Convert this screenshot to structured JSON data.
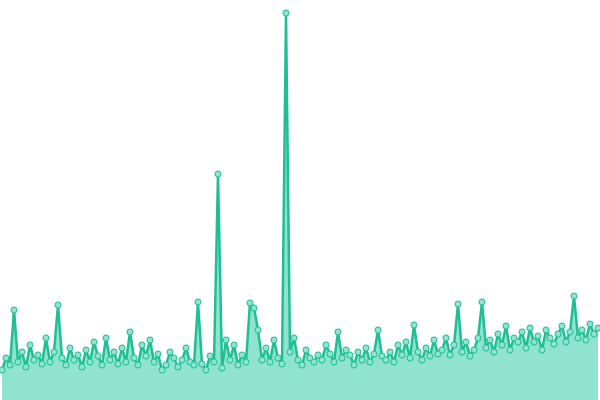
{
  "chart_data": {
    "type": "area",
    "color": "#1fbf95",
    "fill": "#8fe3cf",
    "ylim": [
      0,
      400
    ],
    "categories": [
      null,
      null,
      null,
      null,
      null,
      null,
      null,
      null,
      null,
      null,
      null,
      null,
      null,
      null,
      null,
      null,
      null,
      null,
      null,
      null,
      null,
      null,
      null,
      null,
      null,
      null,
      null,
      null,
      null,
      null,
      null,
      null,
      null,
      null,
      null,
      null,
      null,
      null,
      null,
      null,
      null,
      null,
      null,
      null,
      null,
      null,
      null,
      null,
      null,
      null,
      null,
      null,
      null,
      null,
      null,
      null,
      null,
      null,
      null,
      null,
      null,
      null,
      null,
      null,
      null,
      null,
      null,
      null,
      null,
      null,
      null,
      null,
      null,
      null,
      null,
      null,
      null,
      null,
      null,
      null,
      null,
      null,
      null,
      null,
      null,
      null,
      null,
      null,
      null,
      null,
      null,
      null,
      null,
      null,
      null,
      null,
      null,
      null,
      null,
      null,
      null,
      null,
      null,
      null,
      null,
      null,
      null,
      null,
      null,
      null,
      null,
      null,
      null,
      null,
      null,
      null,
      null,
      null,
      null,
      null,
      null,
      null,
      null,
      null,
      null,
      null,
      null,
      null,
      null,
      null,
      null,
      null,
      null,
      null,
      null,
      null,
      null,
      null,
      null,
      null,
      null,
      null,
      null,
      null,
      null,
      null,
      null,
      null,
      null,
      null
    ],
    "values": [
      30,
      42,
      35,
      90,
      38,
      48,
      33,
      55,
      40,
      45,
      36,
      62,
      38,
      48,
      95,
      42,
      35,
      52,
      40,
      45,
      33,
      50,
      38,
      58,
      44,
      35,
      62,
      40,
      48,
      36,
      52,
      38,
      68,
      42,
      35,
      55,
      44,
      60,
      38,
      46,
      30,
      35,
      48,
      42,
      33,
      40,
      52,
      38,
      35,
      98,
      36,
      30,
      44,
      38,
      226,
      32,
      60,
      40,
      55,
      35,
      45,
      38,
      97,
      92,
      70,
      40,
      52,
      38,
      60,
      42,
      36,
      387,
      48,
      62,
      40,
      35,
      50,
      42,
      38,
      45,
      40,
      55,
      46,
      38,
      68,
      42,
      50,
      45,
      35,
      48,
      40,
      52,
      38,
      46,
      70,
      44,
      40,
      48,
      38,
      55,
      45,
      58,
      42,
      75,
      48,
      40,
      52,
      44,
      60,
      46,
      50,
      62,
      45,
      55,
      96,
      48,
      58,
      44,
      50,
      62,
      98,
      52,
      60,
      48,
      66,
      55,
      74,
      50,
      62,
      58,
      68,
      52,
      72,
      58,
      64,
      50,
      70,
      62,
      56,
      66,
      74,
      58,
      68,
      104,
      62,
      70,
      60,
      76,
      66,
      72
    ]
  }
}
